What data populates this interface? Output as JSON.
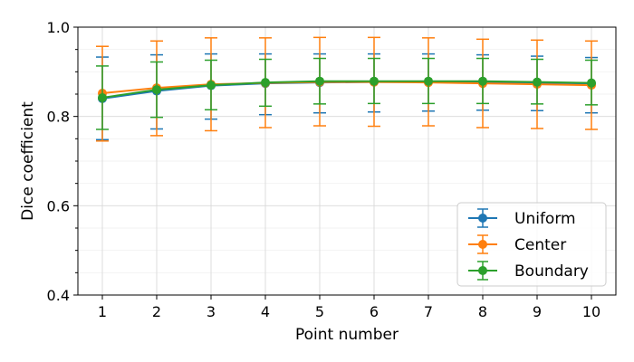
{
  "chart_data": {
    "type": "line",
    "title": "",
    "xlabel": "Point number",
    "ylabel": "Dice coefficient",
    "x": [
      1,
      2,
      3,
      4,
      5,
      6,
      7,
      8,
      9,
      10
    ],
    "xticks": [
      "1",
      "2",
      "3",
      "4",
      "5",
      "6",
      "7",
      "8",
      "9",
      "10"
    ],
    "xlim": [
      0.55,
      10.45
    ],
    "ylim": [
      0.4,
      1.0
    ],
    "yticks": [
      0.4,
      0.6,
      0.8,
      1.0
    ],
    "ytick_labels": [
      "0.4",
      "0.6",
      "0.8",
      "1.0"
    ],
    "grid": true,
    "error_bars": true,
    "legend_position": "bottom-right",
    "series": [
      {
        "name": "Uniform",
        "color": "#1f77b4",
        "values": [
          0.84,
          0.857,
          0.869,
          0.874,
          0.876,
          0.877,
          0.877,
          0.877,
          0.875,
          0.874
        ],
        "err_low": [
          0.748,
          0.772,
          0.794,
          0.804,
          0.808,
          0.81,
          0.812,
          0.814,
          0.813,
          0.808
        ],
        "err_high": [
          0.933,
          0.938,
          0.94,
          0.94,
          0.94,
          0.94,
          0.94,
          0.938,
          0.935,
          0.932
        ]
      },
      {
        "name": "Center",
        "color": "#ff7f0e",
        "values": [
          0.852,
          0.864,
          0.872,
          0.875,
          0.877,
          0.877,
          0.876,
          0.874,
          0.872,
          0.87
        ],
        "err_low": [
          0.745,
          0.757,
          0.768,
          0.775,
          0.779,
          0.778,
          0.779,
          0.775,
          0.773,
          0.771
        ],
        "err_high": [
          0.957,
          0.969,
          0.976,
          0.976,
          0.977,
          0.977,
          0.976,
          0.973,
          0.971,
          0.969
        ]
      },
      {
        "name": "Boundary",
        "color": "#2ca02c",
        "values": [
          0.842,
          0.86,
          0.87,
          0.876,
          0.879,
          0.879,
          0.879,
          0.879,
          0.877,
          0.875
        ],
        "err_low": [
          0.771,
          0.798,
          0.815,
          0.823,
          0.828,
          0.829,
          0.829,
          0.829,
          0.828,
          0.826
        ],
        "err_high": [
          0.913,
          0.922,
          0.926,
          0.928,
          0.93,
          0.93,
          0.93,
          0.93,
          0.928,
          0.926
        ]
      }
    ]
  }
}
